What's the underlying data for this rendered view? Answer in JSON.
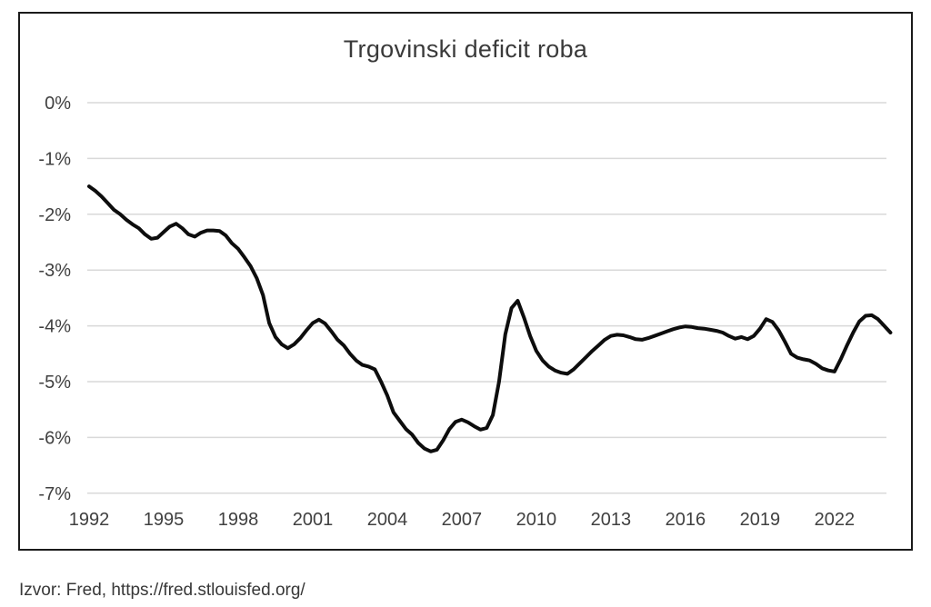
{
  "source_note": "Izvor: Fred, https://fred.stlouisfed.org/",
  "colors": {
    "line": "#0d0d0d",
    "grid": "#d9d9d9",
    "axis_text": "#404040",
    "frame_border": "#1b1b1b",
    "background": "#ffffff"
  },
  "chart_data": {
    "type": "line",
    "title": "Trgovinski deficit roba",
    "xlabel": "",
    "ylabel": "",
    "legend": "none",
    "grid": "horizontal-only",
    "xlim": [
      1992,
      2024.5
    ],
    "ylim": [
      -7,
      0
    ],
    "x_tick_years": [
      1992,
      1995,
      1998,
      2001,
      2004,
      2007,
      2010,
      2013,
      2016,
      2019,
      2022
    ],
    "x_tick_labels": [
      "1992",
      "1995",
      "1998",
      "2001",
      "2004",
      "2007",
      "2010",
      "2013",
      "2016",
      "2019",
      "2022"
    ],
    "y_tick_values": [
      0,
      -1,
      -2,
      -3,
      -4,
      -5,
      -6,
      -7
    ],
    "y_tick_labels": [
      "0%",
      "-1%",
      "-2%",
      "-3%",
      "-4%",
      "-5%",
      "-6%",
      "-7%"
    ],
    "series": [
      {
        "name": "Trgovinski deficit roba",
        "points": [
          [
            1992.0,
            -1.5
          ],
          [
            1992.25,
            -1.58
          ],
          [
            1992.5,
            -1.68
          ],
          [
            1992.75,
            -1.8
          ],
          [
            1993.0,
            -1.92
          ],
          [
            1993.25,
            -2.0
          ],
          [
            1993.5,
            -2.1
          ],
          [
            1993.75,
            -2.18
          ],
          [
            1994.0,
            -2.25
          ],
          [
            1994.25,
            -2.36
          ],
          [
            1994.5,
            -2.44
          ],
          [
            1994.75,
            -2.42
          ],
          [
            1995.0,
            -2.32
          ],
          [
            1995.25,
            -2.22
          ],
          [
            1995.5,
            -2.17
          ],
          [
            1995.75,
            -2.25
          ],
          [
            1996.0,
            -2.36
          ],
          [
            1996.25,
            -2.4
          ],
          [
            1996.5,
            -2.33
          ],
          [
            1996.75,
            -2.29
          ],
          [
            1997.0,
            -2.29
          ],
          [
            1997.25,
            -2.3
          ],
          [
            1997.5,
            -2.38
          ],
          [
            1997.75,
            -2.52
          ],
          [
            1998.0,
            -2.62
          ],
          [
            1998.25,
            -2.77
          ],
          [
            1998.5,
            -2.93
          ],
          [
            1998.75,
            -3.15
          ],
          [
            1999.0,
            -3.45
          ],
          [
            1999.25,
            -3.95
          ],
          [
            1999.5,
            -4.2
          ],
          [
            1999.75,
            -4.33
          ],
          [
            2000.0,
            -4.4
          ],
          [
            2000.25,
            -4.33
          ],
          [
            2000.5,
            -4.22
          ],
          [
            2000.75,
            -4.08
          ],
          [
            2001.0,
            -3.95
          ],
          [
            2001.25,
            -3.89
          ],
          [
            2001.5,
            -3.96
          ],
          [
            2001.75,
            -4.1
          ],
          [
            2002.0,
            -4.25
          ],
          [
            2002.25,
            -4.35
          ],
          [
            2002.5,
            -4.5
          ],
          [
            2002.75,
            -4.62
          ],
          [
            2003.0,
            -4.7
          ],
          [
            2003.25,
            -4.73
          ],
          [
            2003.5,
            -4.78
          ],
          [
            2003.75,
            -5.0
          ],
          [
            2004.0,
            -5.25
          ],
          [
            2004.25,
            -5.55
          ],
          [
            2004.5,
            -5.7
          ],
          [
            2004.75,
            -5.85
          ],
          [
            2005.0,
            -5.95
          ],
          [
            2005.25,
            -6.1
          ],
          [
            2005.5,
            -6.2
          ],
          [
            2005.75,
            -6.25
          ],
          [
            2006.0,
            -6.22
          ],
          [
            2006.25,
            -6.05
          ],
          [
            2006.5,
            -5.85
          ],
          [
            2006.75,
            -5.72
          ],
          [
            2007.0,
            -5.68
          ],
          [
            2007.25,
            -5.73
          ],
          [
            2007.5,
            -5.8
          ],
          [
            2007.75,
            -5.86
          ],
          [
            2008.0,
            -5.83
          ],
          [
            2008.25,
            -5.6
          ],
          [
            2008.5,
            -5.0
          ],
          [
            2008.75,
            -4.15
          ],
          [
            2009.0,
            -3.68
          ],
          [
            2009.25,
            -3.55
          ],
          [
            2009.5,
            -3.85
          ],
          [
            2009.75,
            -4.18
          ],
          [
            2010.0,
            -4.45
          ],
          [
            2010.25,
            -4.62
          ],
          [
            2010.5,
            -4.73
          ],
          [
            2010.75,
            -4.8
          ],
          [
            2011.0,
            -4.84
          ],
          [
            2011.25,
            -4.86
          ],
          [
            2011.5,
            -4.78
          ],
          [
            2011.75,
            -4.67
          ],
          [
            2012.0,
            -4.56
          ],
          [
            2012.25,
            -4.45
          ],
          [
            2012.5,
            -4.35
          ],
          [
            2012.75,
            -4.25
          ],
          [
            2013.0,
            -4.18
          ],
          [
            2013.25,
            -4.16
          ],
          [
            2013.5,
            -4.17
          ],
          [
            2013.75,
            -4.2
          ],
          [
            2014.0,
            -4.24
          ],
          [
            2014.25,
            -4.25
          ],
          [
            2014.5,
            -4.22
          ],
          [
            2014.75,
            -4.18
          ],
          [
            2015.0,
            -4.14
          ],
          [
            2015.25,
            -4.1
          ],
          [
            2015.5,
            -4.06
          ],
          [
            2015.75,
            -4.03
          ],
          [
            2016.0,
            -4.01
          ],
          [
            2016.25,
            -4.02
          ],
          [
            2016.5,
            -4.04
          ],
          [
            2016.75,
            -4.05
          ],
          [
            2017.0,
            -4.07
          ],
          [
            2017.25,
            -4.09
          ],
          [
            2017.5,
            -4.12
          ],
          [
            2017.75,
            -4.18
          ],
          [
            2018.0,
            -4.23
          ],
          [
            2018.25,
            -4.2
          ],
          [
            2018.5,
            -4.24
          ],
          [
            2018.75,
            -4.18
          ],
          [
            2019.0,
            -4.05
          ],
          [
            2019.25,
            -3.88
          ],
          [
            2019.5,
            -3.93
          ],
          [
            2019.75,
            -4.08
          ],
          [
            2020.0,
            -4.28
          ],
          [
            2020.25,
            -4.5
          ],
          [
            2020.5,
            -4.57
          ],
          [
            2020.75,
            -4.6
          ],
          [
            2021.0,
            -4.62
          ],
          [
            2021.25,
            -4.68
          ],
          [
            2021.5,
            -4.76
          ],
          [
            2021.75,
            -4.8
          ],
          [
            2022.0,
            -4.82
          ],
          [
            2022.25,
            -4.6
          ],
          [
            2022.5,
            -4.35
          ],
          [
            2022.75,
            -4.12
          ],
          [
            2023.0,
            -3.92
          ],
          [
            2023.25,
            -3.82
          ],
          [
            2023.5,
            -3.81
          ],
          [
            2023.75,
            -3.88
          ],
          [
            2024.0,
            -4.0
          ],
          [
            2024.25,
            -4.12
          ]
        ]
      }
    ]
  }
}
